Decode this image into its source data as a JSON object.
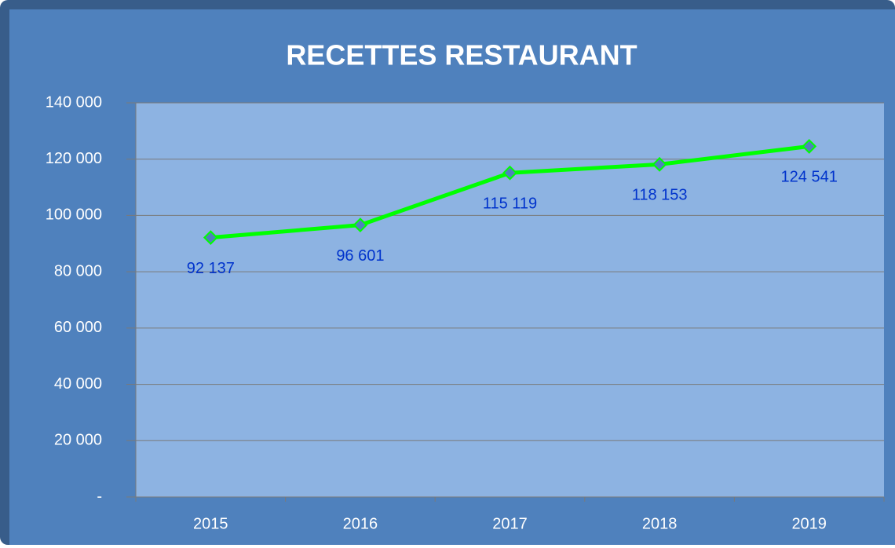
{
  "chart_data": {
    "type": "line",
    "title": "RECETTES RESTAURANT",
    "categories": [
      "2015",
      "2016",
      "2017",
      "2018",
      "2019"
    ],
    "values": [
      92137,
      96601,
      115119,
      118153,
      124541
    ],
    "value_labels": [
      "92 137",
      "96 601",
      "115 119",
      "118 153",
      "124 541"
    ],
    "color": "#00ff00",
    "ylim": [
      0,
      140000
    ],
    "yticks": [
      {
        "value": 0,
        "label": "-"
      },
      {
        "value": 20000,
        "label": "20 000"
      },
      {
        "value": 40000,
        "label": "40 000"
      },
      {
        "value": 60000,
        "label": "60 000"
      },
      {
        "value": 80000,
        "label": "80 000"
      },
      {
        "value": 100000,
        "label": "100 000"
      },
      {
        "value": 120000,
        "label": "120 000"
      },
      {
        "value": 140000,
        "label": "140 000"
      }
    ],
    "grid": true
  }
}
